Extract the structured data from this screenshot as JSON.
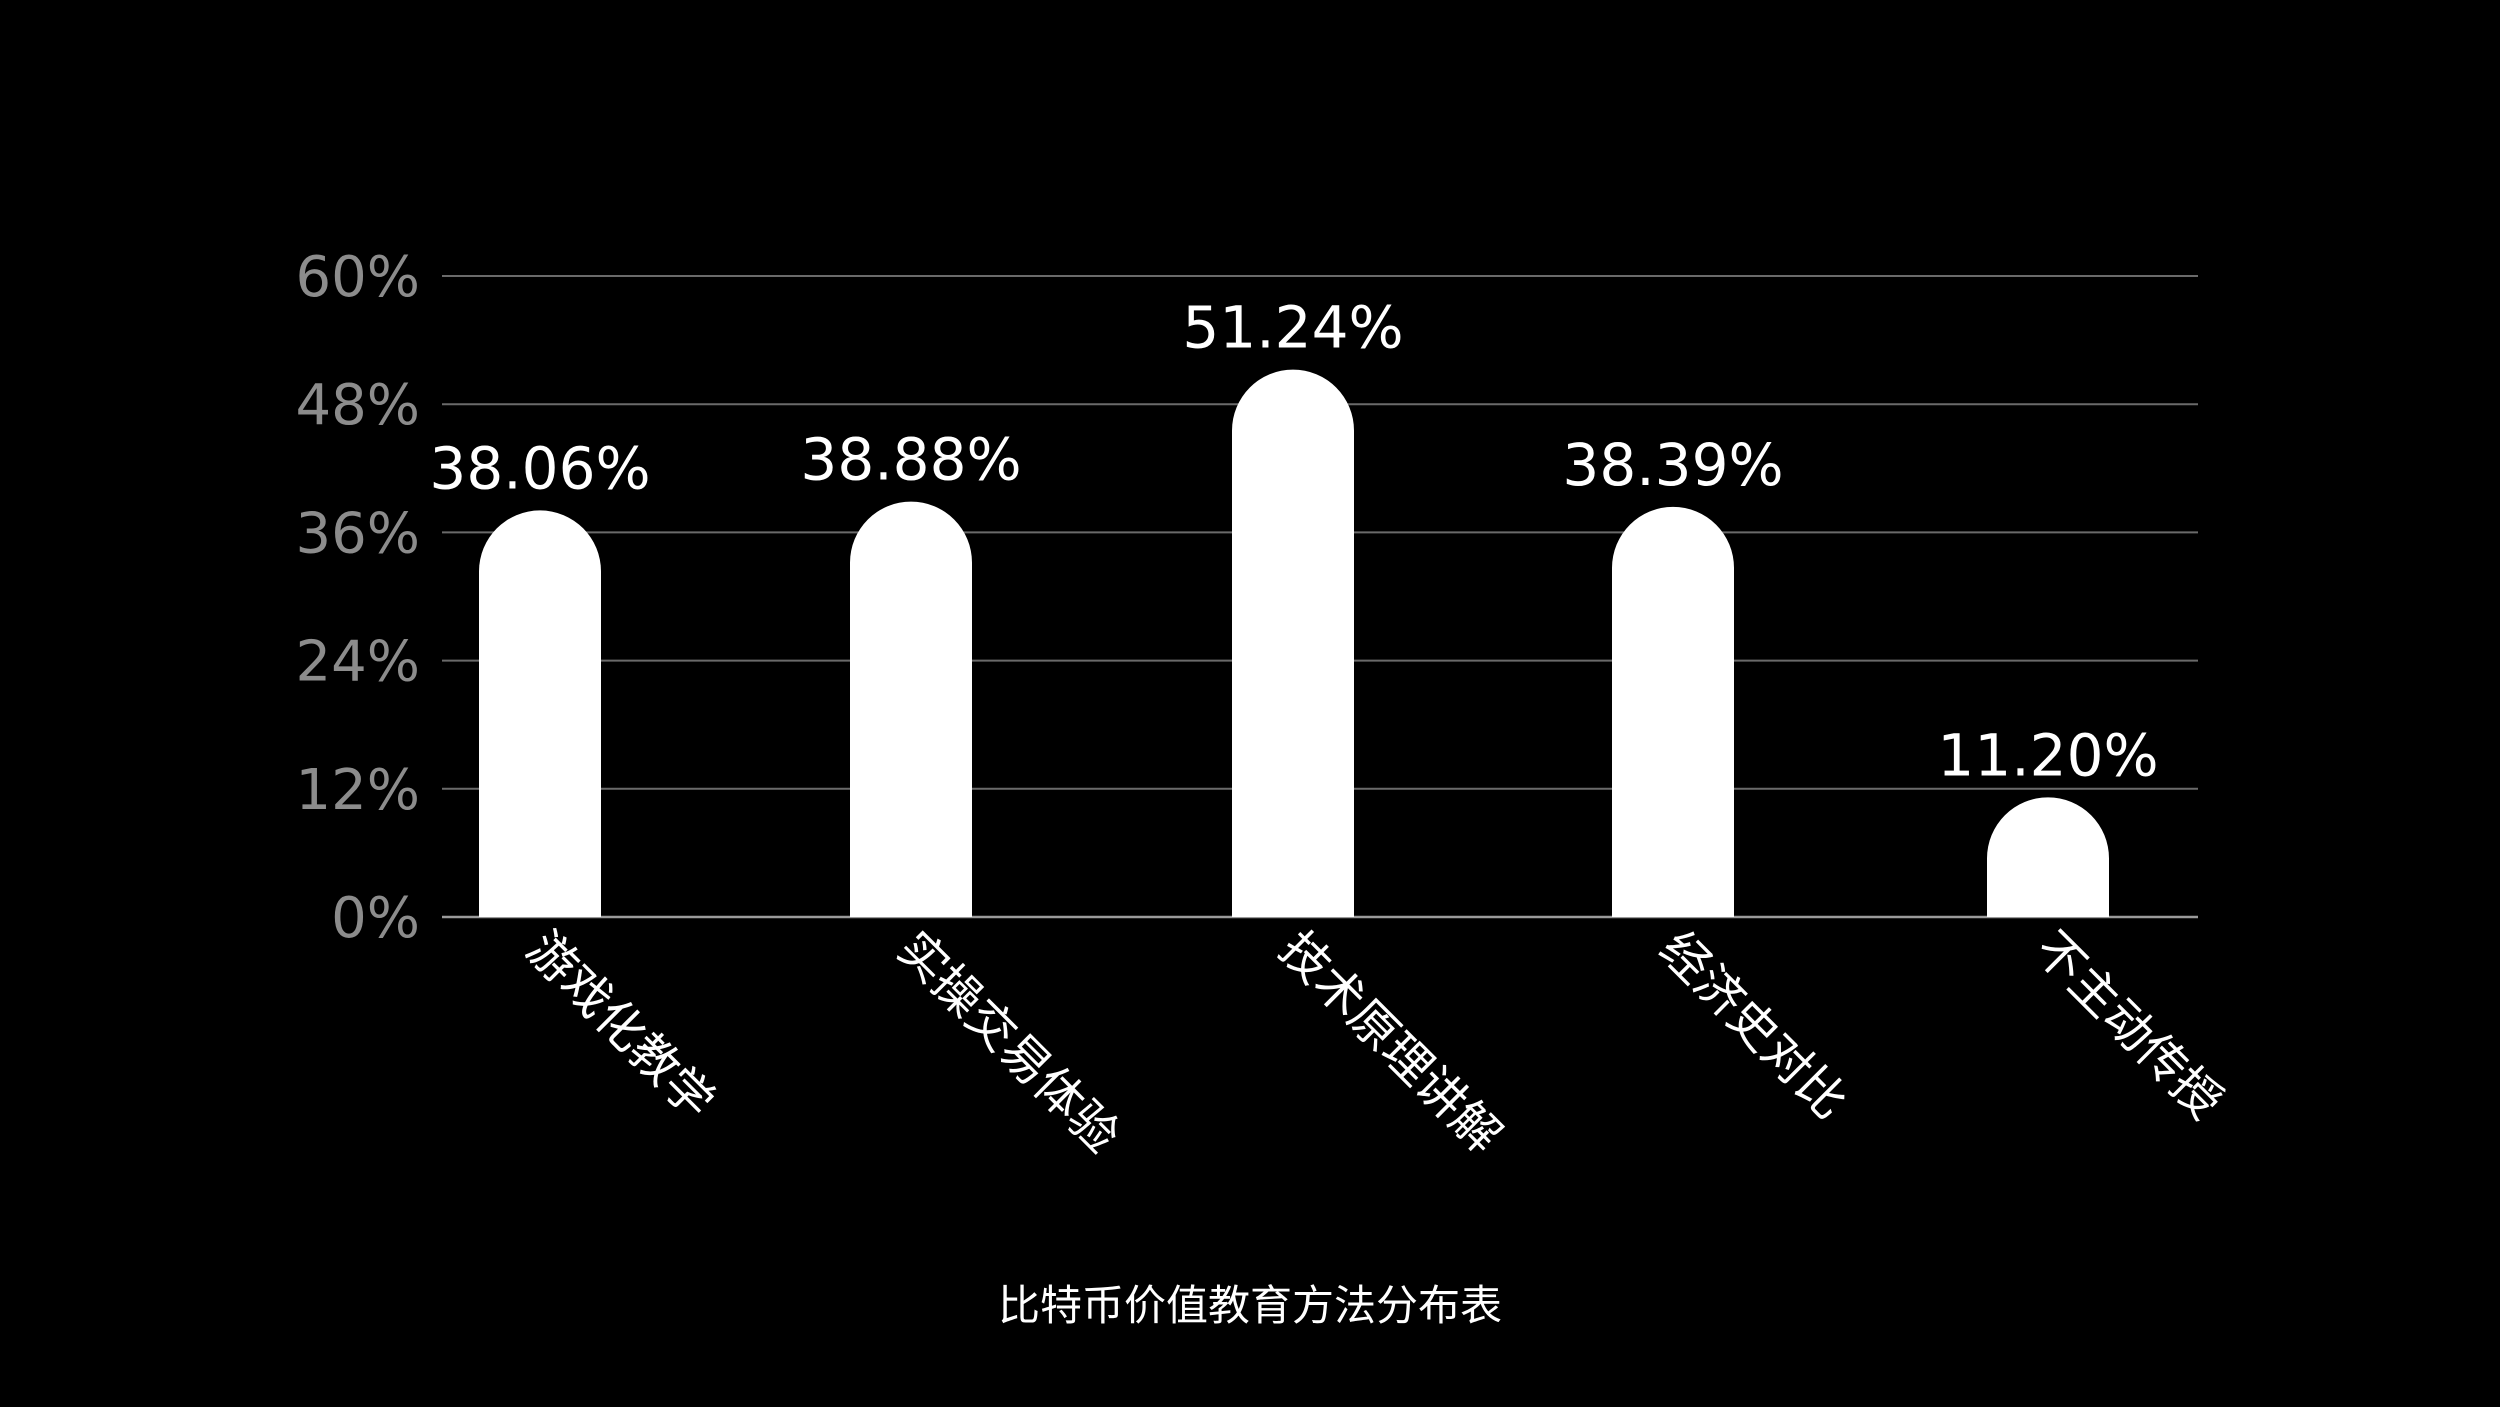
{
  "chart_data": {
    "type": "bar",
    "title": "比特币价值教育方法分布表",
    "categories": [
      "游戏化教学",
      "实操交易体验",
      "技术原理讲解",
      "经济史对比",
      "不主动传授"
    ],
    "values": [
      38.06,
      38.88,
      51.24,
      38.39,
      11.2
    ],
    "value_labels": [
      "38.06%",
      "38.88%",
      "51.24%",
      "38.39%",
      "11.20%"
    ],
    "y_ticks": [
      0,
      12,
      24,
      36,
      48,
      60
    ],
    "y_tick_labels": [
      "0%",
      "12%",
      "24%",
      "36%",
      "48%",
      "60%"
    ],
    "ylim": [
      0,
      60
    ],
    "xlabel": "",
    "ylabel": "",
    "grid": true,
    "legend": "none",
    "colors": {
      "background": "#000000",
      "bar": "#ffffff",
      "grid": "#6a6a6a",
      "tick_text": "#8c8c8c",
      "text": "#ffffff"
    }
  }
}
